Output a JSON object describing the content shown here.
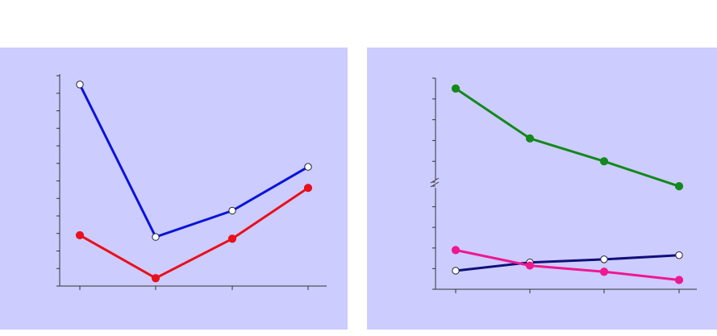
{
  "colors": {
    "panel_background": "#ccccff",
    "axis": "#333333",
    "blue": "#0a14d8",
    "red": "#e8101c",
    "green": "#13881b",
    "navy": "#10107a",
    "pink": "#ee1890",
    "open_marker_fill": "#ffffff"
  },
  "chart_data": [
    {
      "type": "line",
      "title": "",
      "xlabel": "",
      "ylabel": "",
      "x": [
        1,
        2,
        3,
        4
      ],
      "ylim": [
        0,
        12
      ],
      "y_ticks": [
        0,
        1,
        2,
        3,
        4,
        5,
        6,
        7,
        8,
        9,
        10,
        11,
        12
      ],
      "tick_labels_shown": false,
      "grid": false,
      "series": [
        {
          "color": "blue",
          "marker": "open-circle",
          "values": [
            11.5,
            2.8,
            4.3,
            6.8
          ]
        },
        {
          "color": "red",
          "marker": "filled-circle",
          "values": [
            2.9,
            0.45,
            2.7,
            5.6
          ]
        }
      ]
    },
    {
      "type": "line",
      "title": "",
      "xlabel": "",
      "ylabel": "",
      "x": [
        1,
        2,
        3,
        4
      ],
      "broken_y_axis": true,
      "ylim_lower": [
        0,
        5
      ],
      "ylim_upper": [
        10,
        15
      ],
      "tick_labels_shown": false,
      "grid": false,
      "series": [
        {
          "color": "green",
          "marker": "filled-circle",
          "values": [
            14.5,
            12.1,
            11.0,
            9.8
          ]
        },
        {
          "color": "navy",
          "marker": "open-circle",
          "values": [
            0.9,
            1.3,
            1.45,
            1.65
          ]
        },
        {
          "color": "pink",
          "marker": "filled-circle",
          "values": [
            1.9,
            1.15,
            0.85,
            0.45
          ]
        }
      ]
    }
  ]
}
